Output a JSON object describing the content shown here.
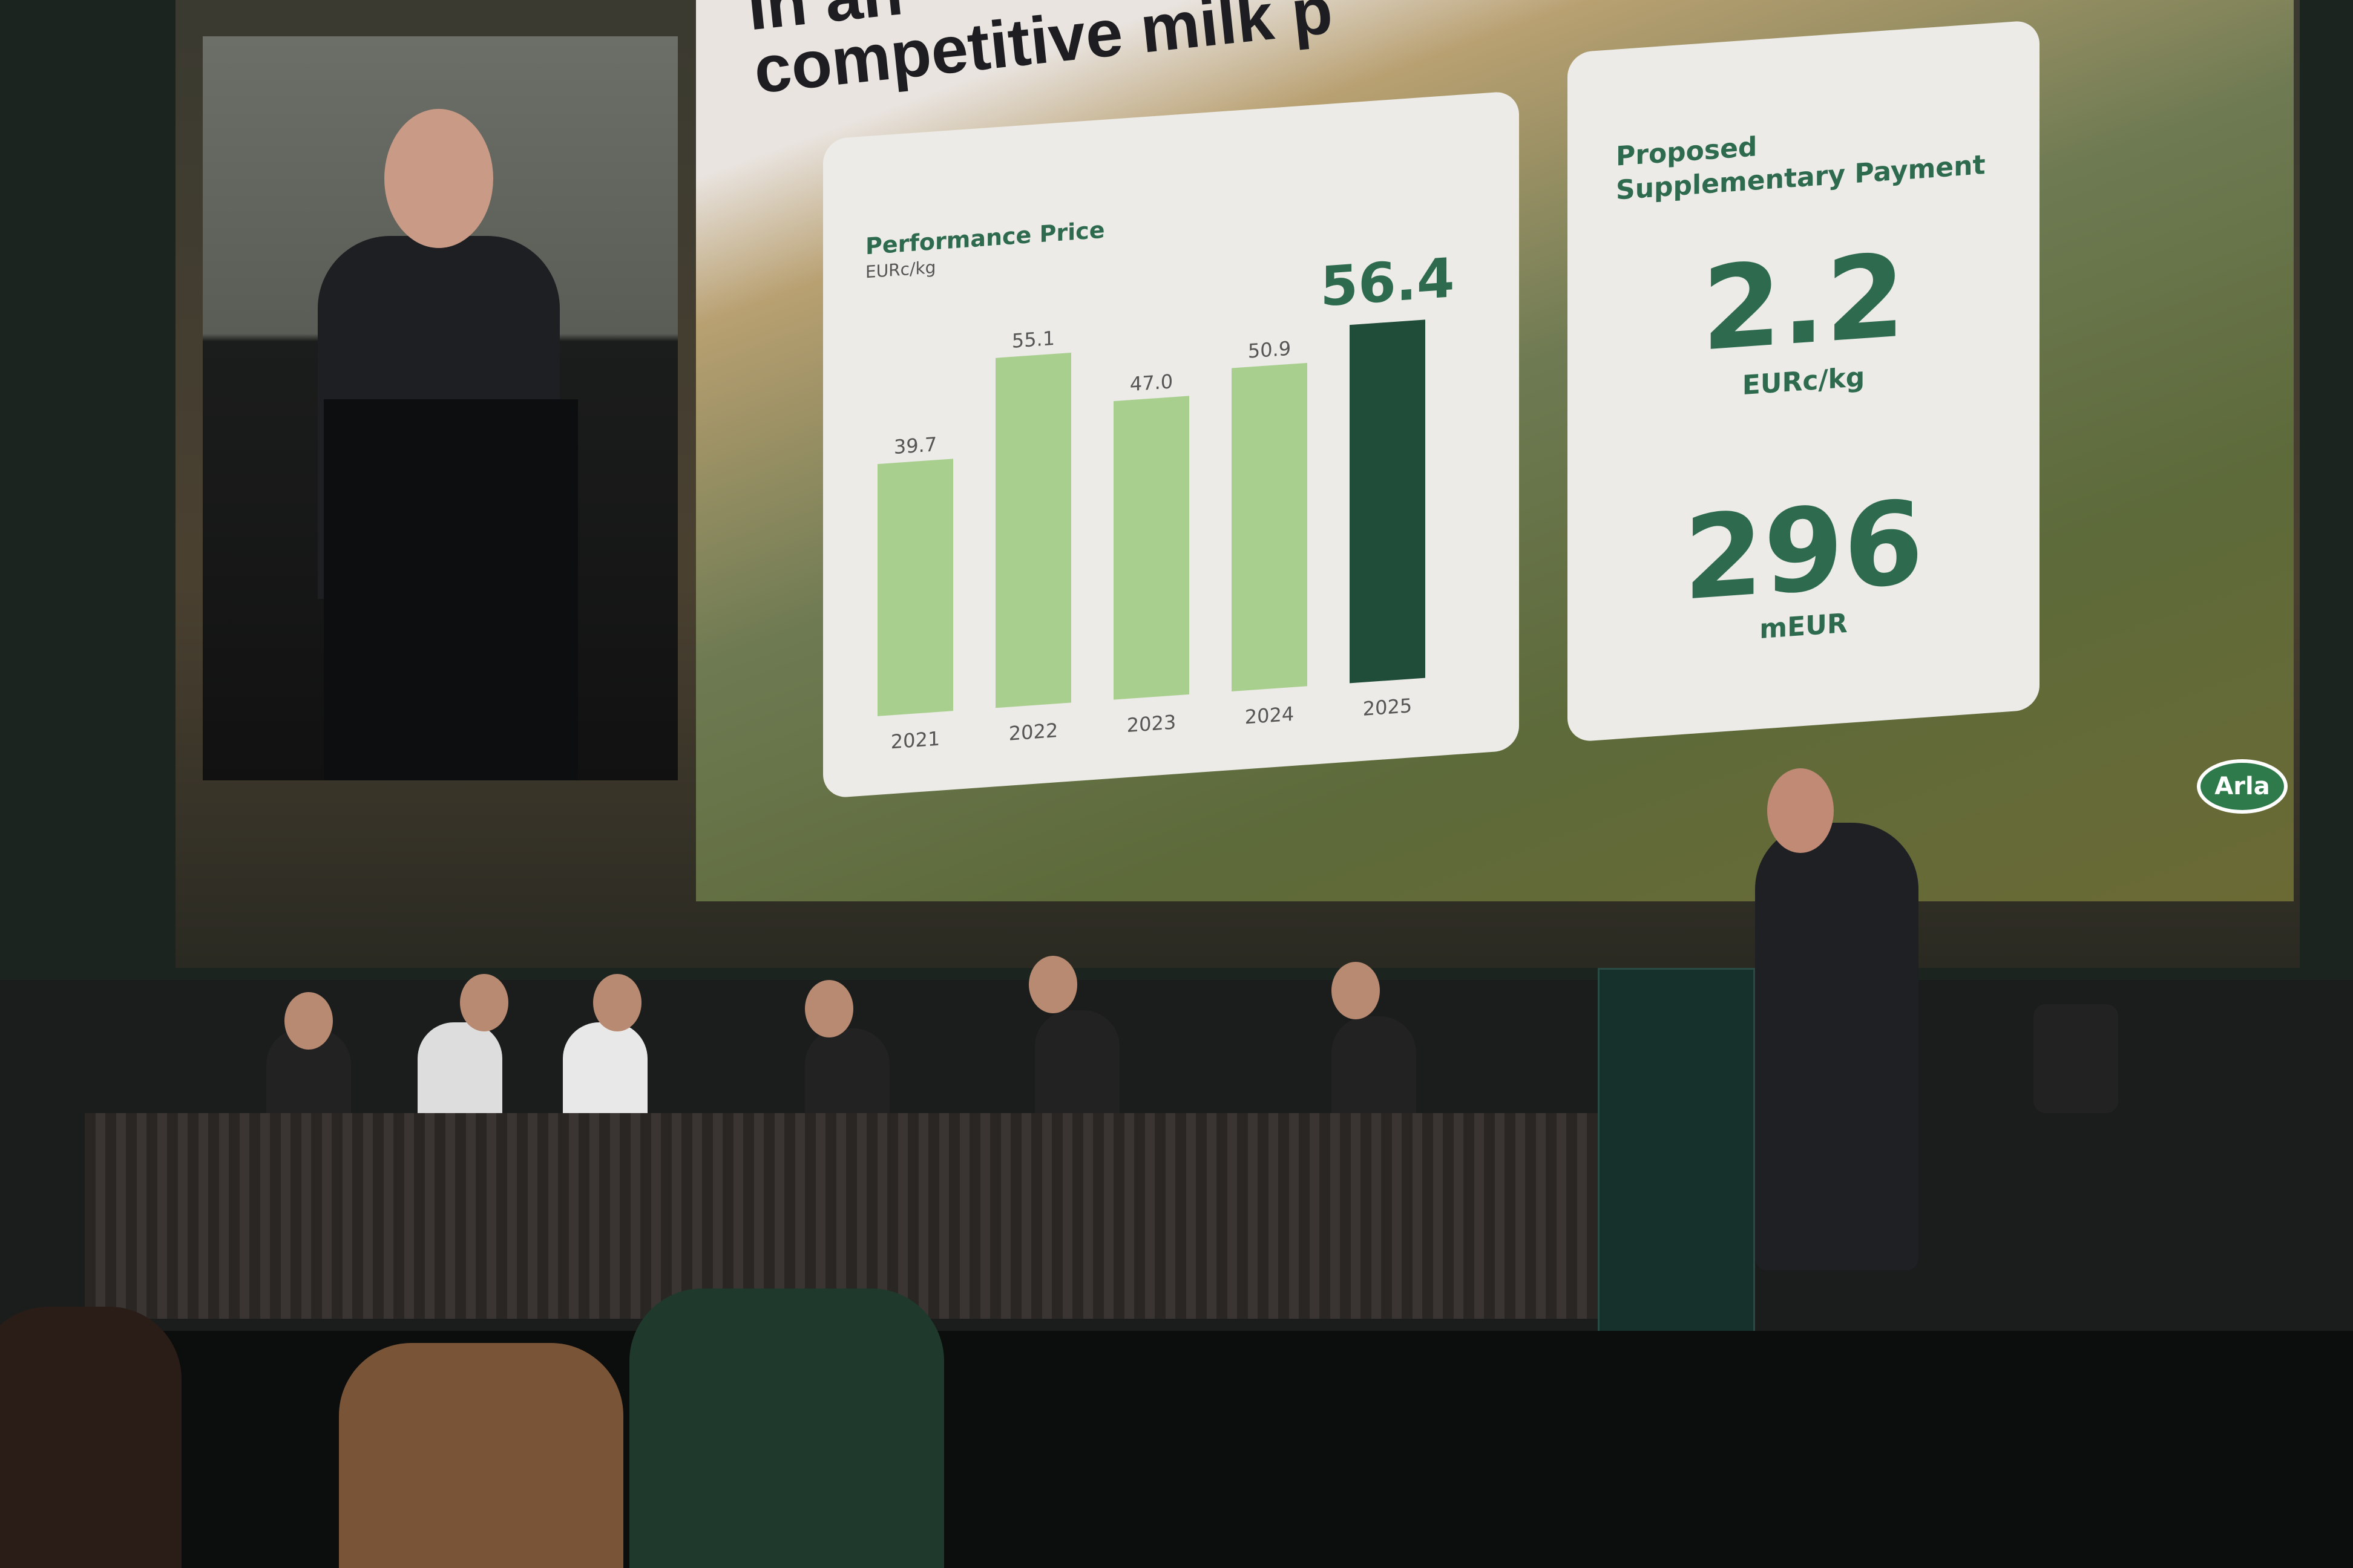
{
  "slide": {
    "title_lines": [
      "In an",
      "competitive milk p"
    ],
    "performance_price": {
      "title": "Performance Price",
      "unit": "EURc/kg",
      "highlight_value": "56.4"
    },
    "supplementary_payment": {
      "title": "Proposed Supplementary Payment",
      "value_per_kg": "2.2",
      "value_per_kg_unit": "EURc/kg",
      "total_value": "296",
      "total_unit": "mEUR"
    },
    "logo_text": "Arla"
  },
  "colors": {
    "bar_light": "#a9cf8f",
    "bar_highlight": "#1f4d3a",
    "text_green": "#2e6b4e"
  },
  "chart_data": {
    "type": "bar",
    "title": "Performance Price",
    "ylabel": "EURc/kg",
    "categories": [
      "2021",
      "2022",
      "2023",
      "2024",
      "2025"
    ],
    "values": [
      39.7,
      55.1,
      47.0,
      50.9,
      56.4
    ],
    "value_labels": [
      "39.7",
      "55.1",
      "47.0",
      "50.9",
      "56.4"
    ],
    "highlight_category": "2025",
    "grid": false,
    "ylim": [
      0,
      60
    ]
  }
}
